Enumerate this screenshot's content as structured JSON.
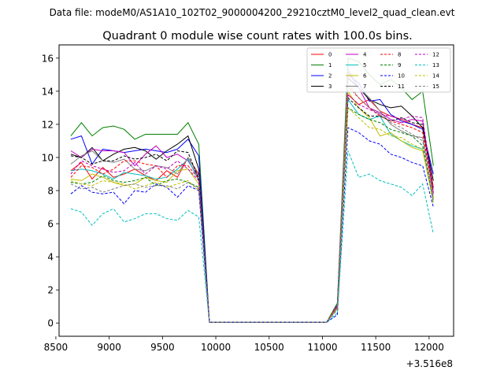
{
  "suptitle": "Data file: modeM0/AS1A10_102T02_9000004200_29210cztM0_level2_quad_clean.evt",
  "chart_data": {
    "type": "line",
    "title": "Quadrant 0 module wise count rates with 100.0s bins.",
    "xlabel": "",
    "ylabel": "",
    "x_offset_label": "+3.516e8",
    "xlim": [
      8530,
      12230
    ],
    "ylim": [
      -0.8,
      16.8
    ],
    "xticks": [
      8500,
      9000,
      9500,
      10000,
      10500,
      11000,
      11500,
      12000
    ],
    "xtick_labels": [
      "8500",
      "9000",
      "9500",
      "10000",
      "10500",
      "11000",
      "11500",
      "12000"
    ],
    "yticks": [
      0,
      2,
      4,
      6,
      8,
      10,
      12,
      14,
      16
    ],
    "ytick_labels": [
      "0",
      "2",
      "4",
      "6",
      "8",
      "10",
      "12",
      "14",
      "16"
    ],
    "grid": false,
    "legend_position": "top-right",
    "x": [
      8640,
      8740,
      8840,
      8940,
      9040,
      9140,
      9240,
      9340,
      9440,
      9540,
      9640,
      9740,
      9840,
      9940,
      10040,
      10140,
      10240,
      10340,
      10440,
      10540,
      10640,
      10740,
      10840,
      10940,
      11040,
      11140,
      11240,
      11340,
      11440,
      11540,
      11640,
      11740,
      11840,
      11940,
      12040
    ],
    "series": [
      {
        "name": "0",
        "color": "#ff0000",
        "dash": false,
        "values": [
          9.2,
          9.7,
          8.7,
          9.4,
          8.8,
          9.0,
          9.3,
          8.9,
          8.6,
          9.2,
          8.8,
          10.0,
          9.0,
          0.05,
          0.05,
          0.05,
          0.05,
          0.05,
          0.05,
          0.05,
          0.05,
          0.05,
          0.05,
          0.05,
          0.05,
          1.1,
          13.8,
          13.2,
          13.5,
          12.8,
          12.5,
          12.3,
          12.0,
          11.8,
          8.2
        ]
      },
      {
        "name": "1",
        "color": "#008000",
        "dash": false,
        "values": [
          11.3,
          12.1,
          11.3,
          11.8,
          11.9,
          11.7,
          11.1,
          11.4,
          11.4,
          11.4,
          11.4,
          12.1,
          10.8,
          0.05,
          0.05,
          0.05,
          0.05,
          0.05,
          0.05,
          0.05,
          0.05,
          0.05,
          0.05,
          0.05,
          0.05,
          1.2,
          16.0,
          15.8,
          15.0,
          14.4,
          14.7,
          14.2,
          13.5,
          14.0,
          9.5
        ]
      },
      {
        "name": "2",
        "color": "#0000ff",
        "dash": false,
        "values": [
          11.1,
          11.3,
          9.6,
          10.5,
          10.4,
          10.3,
          10.4,
          10.5,
          10.4,
          10.3,
          10.5,
          11.1,
          10.1,
          0.05,
          0.05,
          0.05,
          0.05,
          0.05,
          0.05,
          0.05,
          0.05,
          0.05,
          0.05,
          0.05,
          0.05,
          1.0,
          15.0,
          14.5,
          13.4,
          13.5,
          12.6,
          12.2,
          12.0,
          11.7,
          9.0
        ]
      },
      {
        "name": "3",
        "color": "#000000",
        "dash": false,
        "values": [
          10.2,
          10.0,
          10.6,
          9.8,
          10.2,
          10.5,
          10.6,
          10.4,
          9.9,
          10.4,
          10.8,
          11.3,
          9.3,
          0.05,
          0.05,
          0.05,
          0.05,
          0.05,
          0.05,
          0.05,
          0.05,
          0.05,
          0.05,
          0.05,
          0.05,
          0.9,
          14.8,
          14.2,
          13.5,
          13.2,
          13.0,
          13.1,
          12.5,
          11.8,
          8.6
        ]
      },
      {
        "name": "4",
        "color": "#bf00bf",
        "dash": false,
        "values": [
          10.4,
          10.0,
          10.5,
          10.4,
          10.4,
          10.3,
          9.5,
          10.2,
          10.7,
          10.0,
          10.2,
          9.8,
          8.8,
          0.05,
          0.05,
          0.05,
          0.05,
          0.05,
          0.05,
          0.05,
          0.05,
          0.05,
          0.05,
          0.05,
          0.05,
          1.1,
          15.2,
          14.2,
          13.0,
          12.7,
          12.3,
          12.1,
          12.3,
          12.2,
          7.8
        ]
      },
      {
        "name": "5",
        "color": "#00bfbf",
        "dash": false,
        "values": [
          9.2,
          9.3,
          9.2,
          9.0,
          8.7,
          9.1,
          9.0,
          8.9,
          8.7,
          8.8,
          9.3,
          9.9,
          8.6,
          0.05,
          0.05,
          0.05,
          0.05,
          0.05,
          0.05,
          0.05,
          0.05,
          0.05,
          0.05,
          0.05,
          0.05,
          1.0,
          13.5,
          12.6,
          12.3,
          12.5,
          11.4,
          11.0,
          10.7,
          10.5,
          7.4
        ]
      },
      {
        "name": "6",
        "color": "#bfbf00",
        "dash": false,
        "values": [
          8.7,
          8.6,
          9.0,
          8.8,
          8.5,
          8.3,
          8.4,
          8.8,
          8.6,
          8.5,
          9.2,
          9.3,
          8.4,
          0.05,
          0.05,
          0.05,
          0.05,
          0.05,
          0.05,
          0.05,
          0.05,
          0.05,
          0.05,
          0.05,
          0.05,
          1.0,
          14.0,
          13.0,
          12.4,
          11.3,
          11.5,
          11.0,
          10.6,
          10.4,
          7.5
        ]
      },
      {
        "name": "7",
        "color": "#808080",
        "dash": false,
        "values": [
          9.6,
          10.1,
          10.4,
          9.8,
          9.7,
          9.9,
          9.3,
          9.2,
          9.5,
          9.4,
          9.0,
          10.0,
          8.9,
          0.05,
          0.05,
          0.05,
          0.05,
          0.05,
          0.05,
          0.05,
          0.05,
          0.05,
          0.05,
          0.05,
          0.05,
          0.9,
          15.4,
          14.2,
          13.6,
          12.8,
          12.0,
          11.6,
          11.3,
          11.2,
          7.6
        ]
      },
      {
        "name": "8",
        "color": "#ff0000",
        "dash": true,
        "values": [
          8.8,
          9.5,
          9.4,
          9.0,
          9.3,
          9.8,
          9.8,
          9.6,
          9.5,
          8.8,
          9.5,
          9.5,
          8.7,
          0.05,
          0.05,
          0.05,
          0.05,
          0.05,
          0.05,
          0.05,
          0.05,
          0.05,
          0.05,
          0.05,
          0.05,
          1.0,
          14.3,
          13.6,
          13.0,
          12.5,
          12.2,
          12.0,
          11.8,
          11.5,
          7.9
        ]
      },
      {
        "name": "9",
        "color": "#008000",
        "dash": true,
        "values": [
          8.5,
          8.4,
          8.5,
          8.9,
          8.6,
          8.5,
          8.6,
          8.8,
          8.3,
          8.6,
          8.7,
          8.5,
          8.2,
          0.05,
          0.05,
          0.05,
          0.05,
          0.05,
          0.05,
          0.05,
          0.05,
          0.05,
          0.05,
          0.05,
          0.05,
          1.2,
          13.0,
          12.6,
          12.3,
          12.1,
          11.7,
          11.5,
          11.3,
          10.7,
          7.3
        ]
      },
      {
        "name": "10",
        "color": "#0000ff",
        "dash": true,
        "values": [
          7.8,
          8.3,
          7.9,
          7.8,
          7.9,
          7.2,
          8.0,
          7.9,
          8.4,
          8.2,
          7.6,
          8.3,
          8.0,
          0.05,
          0.05,
          0.05,
          0.05,
          0.05,
          0.05,
          0.05,
          0.05,
          0.05,
          0.05,
          0.05,
          0.05,
          0.5,
          11.8,
          11.5,
          11.0,
          10.8,
          10.2,
          10.0,
          9.7,
          9.5,
          7.0
        ]
      },
      {
        "name": "11",
        "color": "#000000",
        "dash": true,
        "values": [
          10.1,
          10.0,
          9.6,
          9.8,
          9.8,
          10.1,
          9.9,
          10.0,
          10.2,
          9.8,
          10.4,
          10.3,
          8.7,
          0.05,
          0.05,
          0.05,
          0.05,
          0.05,
          0.05,
          0.05,
          0.05,
          0.05,
          0.05,
          0.05,
          0.05,
          0.9,
          13.6,
          13.0,
          12.5,
          12.5,
          12.2,
          12.4,
          12.1,
          12.0,
          8.0
        ]
      },
      {
        "name": "12",
        "color": "#bf00bf",
        "dash": true,
        "values": [
          9.0,
          9.8,
          9.5,
          9.3,
          9.1,
          9.2,
          9.7,
          9.0,
          9.5,
          9.3,
          9.8,
          9.3,
          8.6,
          0.05,
          0.05,
          0.05,
          0.05,
          0.05,
          0.05,
          0.05,
          0.05,
          0.05,
          0.05,
          0.05,
          0.05,
          1.0,
          13.8,
          13.2,
          12.9,
          12.6,
          12.5,
          12.3,
          12.5,
          12.4,
          7.9
        ]
      },
      {
        "name": "13",
        "color": "#00bfbf",
        "dash": true,
        "values": [
          6.9,
          6.7,
          5.9,
          6.6,
          6.9,
          6.1,
          6.3,
          6.6,
          6.6,
          6.3,
          6.2,
          6.8,
          6.4,
          0.05,
          0.05,
          0.05,
          0.05,
          0.05,
          0.05,
          0.05,
          0.05,
          0.05,
          0.05,
          0.05,
          0.05,
          0.6,
          10.4,
          8.8,
          9.0,
          8.6,
          8.4,
          8.2,
          7.7,
          8.4,
          5.4
        ]
      },
      {
        "name": "14",
        "color": "#bfbf00",
        "dash": true,
        "values": [
          8.6,
          8.4,
          8.3,
          8.6,
          8.5,
          8.4,
          8.1,
          8.3,
          8.5,
          8.2,
          8.4,
          8.6,
          8.0,
          0.05,
          0.05,
          0.05,
          0.05,
          0.05,
          0.05,
          0.05,
          0.05,
          0.05,
          0.05,
          0.05,
          0.05,
          0.9,
          13.0,
          12.4,
          11.8,
          11.7,
          11.3,
          11.2,
          10.8,
          10.5,
          7.2
        ]
      },
      {
        "name": "15",
        "color": "#808080",
        "dash": true,
        "values": [
          8.4,
          8.1,
          8.2,
          7.9,
          8.1,
          8.3,
          8.4,
          8.2,
          8.3,
          8.3,
          8.1,
          8.5,
          8.1,
          0.05,
          0.05,
          0.05,
          0.05,
          0.05,
          0.05,
          0.05,
          0.05,
          0.05,
          0.05,
          0.05,
          0.05,
          0.8,
          14.5,
          13.6,
          13.0,
          12.6,
          12.1,
          11.8,
          11.4,
          11.0,
          7.4
        ]
      }
    ]
  }
}
